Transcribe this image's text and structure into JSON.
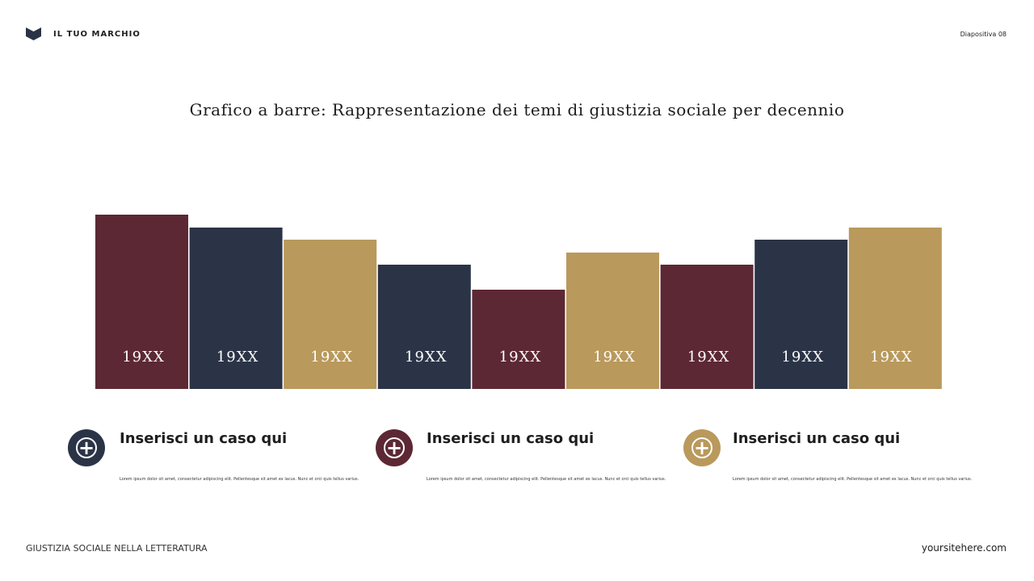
{
  "header": {
    "brand": "IL TUO MARCHIO",
    "slide": "Diapositiva 08"
  },
  "chart_data": {
    "type": "bar",
    "title": "Grafico a barre: Rappresentazione dei temi di giustizia sociale per decennio",
    "categories": [
      "19XX",
      "19XX",
      "19XX",
      "19XX",
      "19XX",
      "19XX",
      "19XX",
      "19XX",
      "19XX"
    ],
    "values": [
      216,
      200,
      185,
      154,
      123,
      169,
      154,
      185,
      200
    ],
    "colors": [
      "#5c2833",
      "#2b3447",
      "#b9995c",
      "#2b3447",
      "#5c2833",
      "#b9995c",
      "#5c2833",
      "#2b3447",
      "#b9995c"
    ]
  },
  "cases": [
    {
      "title": "Inserisci un caso qui",
      "text": "Lorem ipsum dolor sit amet, consectetur adipiscing elit. Pellentesque sit amet ex lacus. Nunc et orci quis tellus varius."
    },
    {
      "title": "Inserisci un caso qui",
      "text": "Lorem ipsum dolor sit amet, consectetur adipiscing elit. Pellentesque sit amet ex lacus. Nunc et orci quis tellus varius."
    },
    {
      "title": "Inserisci un caso qui",
      "text": "Lorem ipsum dolor sit amet, consectetur adipiscing elit. Pellentesque sit amet ex lacus. Nunc et orci quis tellus varius."
    }
  ],
  "footer": {
    "left": "GIUSTIZIA SOCIALE NELLA LETTERATURA",
    "right": "yoursitehere.com"
  }
}
